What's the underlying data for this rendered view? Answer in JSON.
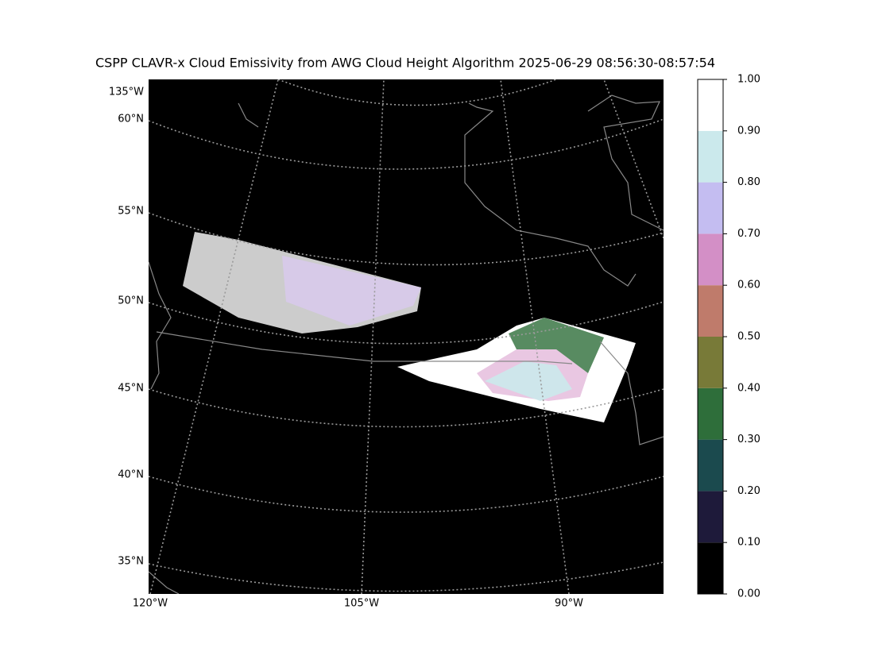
{
  "title": "CSPP CLAVR-x Cloud Emissivity from AWG Cloud Height Algorithm 2025-06-29 08:56:30-08:57:54",
  "map": {
    "lat_labels": [
      "60°N",
      "55°N",
      "50°N",
      "45°N",
      "40°N",
      "35°N"
    ],
    "lon_labels_top": [
      "135°W"
    ],
    "lon_labels_bottom": [
      "120°W",
      "105°W",
      "90°W"
    ]
  },
  "colorbar": {
    "lim": [
      0,
      1
    ],
    "ticks": [
      {
        "value": 0,
        "label": "0.00"
      },
      {
        "value": 0.1,
        "label": "0.10"
      },
      {
        "value": 0.2,
        "label": "0.20"
      },
      {
        "value": 0.3,
        "label": "0.30"
      },
      {
        "value": 0.4,
        "label": "0.40"
      },
      {
        "value": 0.5,
        "label": "0.50"
      },
      {
        "value": 0.6,
        "label": "0.60"
      },
      {
        "value": 0.7,
        "label": "0.70"
      },
      {
        "value": 0.8,
        "label": "0.80"
      },
      {
        "value": 0.9,
        "label": "0.90"
      },
      {
        "value": 1,
        "label": "1.00"
      }
    ],
    "colors": [
      "#000000",
      "#1e1a3a",
      "#1b4a4e",
      "#2e6e3a",
      "#787a38",
      "#bf7b6b",
      "#d38fc6",
      "#c4bdf1",
      "#cbe9ec",
      "#ffffff"
    ]
  }
}
